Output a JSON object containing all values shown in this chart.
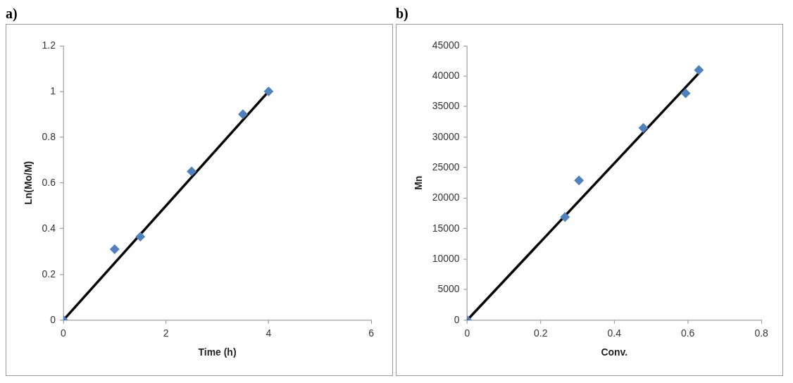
{
  "chart_data": [
    {
      "type": "scatter",
      "title": "a)",
      "xlabel": "Time (h)",
      "ylabel": "Ln(Mo/M)",
      "xlim": [
        0,
        6
      ],
      "xticks": [
        0,
        2,
        4,
        6
      ],
      "ylim": [
        0,
        1.2
      ],
      "yticks": [
        0,
        0.2,
        0.4,
        0.6,
        0.8,
        1,
        1.2
      ],
      "grid": false,
      "legend": false,
      "series": [
        {
          "marker": "diamond",
          "color": "#4f81bd",
          "x": [
            0,
            1,
            1.5,
            2.5,
            3.5,
            4
          ],
          "values": [
            0,
            0.31,
            0.365,
            0.65,
            0.9,
            1.0
          ]
        },
        {
          "type": "line",
          "marker": "none",
          "color": "#000000",
          "x": [
            0,
            4
          ],
          "values": [
            0,
            1.0
          ]
        }
      ]
    },
    {
      "type": "scatter",
      "title": "b)",
      "xlabel": "Conv.",
      "ylabel": "Mn",
      "xlim": [
        0,
        0.8
      ],
      "xticks": [
        0,
        0.2,
        0.4,
        0.6,
        0.8
      ],
      "ylim": [
        0,
        45000
      ],
      "yticks": [
        0,
        5000,
        10000,
        15000,
        20000,
        25000,
        30000,
        35000,
        40000,
        45000
      ],
      "grid": false,
      "legend": false,
      "series": [
        {
          "marker": "diamond",
          "color": "#4f81bd",
          "x": [
            0,
            0.266,
            0.304,
            0.479,
            0.594,
            0.63
          ],
          "values": [
            0,
            16900,
            22900,
            31500,
            37200,
            41000
          ]
        },
        {
          "type": "line",
          "marker": "none",
          "color": "#000000",
          "x": [
            0,
            0.63
          ],
          "values": [
            0,
            40500
          ]
        }
      ]
    }
  ]
}
